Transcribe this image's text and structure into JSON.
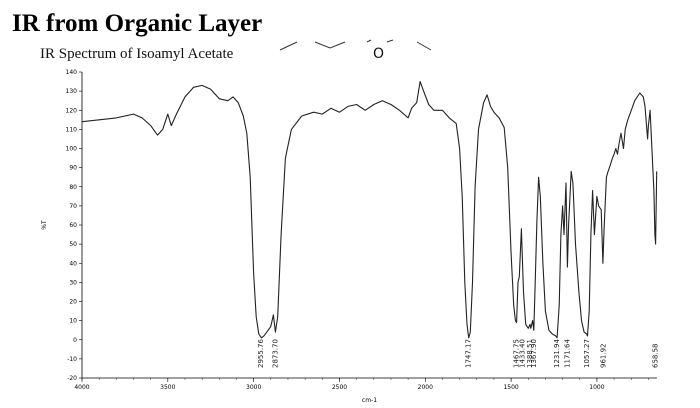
{
  "slide_title": "IR from Organic Layer",
  "structure_atom_label": "O",
  "chart_data": {
    "type": "line",
    "title": "IR Spectrum of Isoamyl Acetate",
    "xlabel": "cm-1",
    "ylabel": "%T",
    "xlim": [
      4000,
      650
    ],
    "ylim": [
      -20,
      140
    ],
    "x_ticks": [
      4000,
      3500,
      3000,
      2500,
      2000,
      1500,
      1000
    ],
    "y_ticks": [
      -20,
      -10,
      0,
      10,
      20,
      30,
      40,
      50,
      60,
      70,
      80,
      90,
      100,
      110,
      120,
      130,
      140
    ],
    "series": [
      {
        "color": "#222222",
        "points": [
          [
            4000,
            114
          ],
          [
            3900,
            115
          ],
          [
            3800,
            116
          ],
          [
            3700,
            118
          ],
          [
            3650,
            116
          ],
          [
            3600,
            112
          ],
          [
            3560,
            107
          ],
          [
            3530,
            110
          ],
          [
            3500,
            118
          ],
          [
            3480,
            112
          ],
          [
            3450,
            118
          ],
          [
            3400,
            127
          ],
          [
            3350,
            132
          ],
          [
            3300,
            133
          ],
          [
            3250,
            131
          ],
          [
            3200,
            126
          ],
          [
            3150,
            125
          ],
          [
            3120,
            127
          ],
          [
            3090,
            124
          ],
          [
            3060,
            117
          ],
          [
            3040,
            108
          ],
          [
            3020,
            85
          ],
          [
            3000,
            35
          ],
          [
            2985,
            12
          ],
          [
            2970,
            3
          ],
          [
            2955,
            1
          ],
          [
            2940,
            2
          ],
          [
            2915,
            5
          ],
          [
            2900,
            7
          ],
          [
            2885,
            13
          ],
          [
            2873,
            4
          ],
          [
            2860,
            12
          ],
          [
            2840,
            55
          ],
          [
            2815,
            95
          ],
          [
            2780,
            110
          ],
          [
            2720,
            117
          ],
          [
            2650,
            119
          ],
          [
            2600,
            118
          ],
          [
            2550,
            121
          ],
          [
            2500,
            119
          ],
          [
            2450,
            122
          ],
          [
            2400,
            123
          ],
          [
            2350,
            120
          ],
          [
            2300,
            123
          ],
          [
            2250,
            125
          ],
          [
            2200,
            123
          ],
          [
            2150,
            120
          ],
          [
            2100,
            116
          ],
          [
            2080,
            121
          ],
          [
            2050,
            124
          ],
          [
            2030,
            135
          ],
          [
            2010,
            130
          ],
          [
            1980,
            123
          ],
          [
            1950,
            120
          ],
          [
            1900,
            120
          ],
          [
            1860,
            116
          ],
          [
            1820,
            113
          ],
          [
            1800,
            100
          ],
          [
            1785,
            75
          ],
          [
            1770,
            30
          ],
          [
            1757,
            8
          ],
          [
            1747,
            1
          ],
          [
            1738,
            4
          ],
          [
            1725,
            30
          ],
          [
            1710,
            80
          ],
          [
            1690,
            110
          ],
          [
            1660,
            124
          ],
          [
            1640,
            128
          ],
          [
            1620,
            122
          ],
          [
            1600,
            119
          ],
          [
            1570,
            116
          ],
          [
            1540,
            111
          ],
          [
            1520,
            90
          ],
          [
            1500,
            45
          ],
          [
            1485,
            18
          ],
          [
            1475,
            10
          ],
          [
            1468,
            9
          ],
          [
            1460,
            30
          ],
          [
            1452,
            33
          ],
          [
            1440,
            58
          ],
          [
            1434,
            42
          ],
          [
            1428,
            25
          ],
          [
            1415,
            8
          ],
          [
            1400,
            6
          ],
          [
            1390,
            8
          ],
          [
            1385,
            6
          ],
          [
            1375,
            10
          ],
          [
            1368,
            5
          ],
          [
            1360,
            28
          ],
          [
            1350,
            62
          ],
          [
            1340,
            85
          ],
          [
            1330,
            75
          ],
          [
            1315,
            40
          ],
          [
            1300,
            15
          ],
          [
            1280,
            5
          ],
          [
            1260,
            3
          ],
          [
            1240,
            2
          ],
          [
            1232,
            1
          ],
          [
            1220,
            18
          ],
          [
            1210,
            55
          ],
          [
            1200,
            70
          ],
          [
            1192,
            55
          ],
          [
            1180,
            82
          ],
          [
            1172,
            38
          ],
          [
            1165,
            60
          ],
          [
            1150,
            88
          ],
          [
            1140,
            82
          ],
          [
            1125,
            50
          ],
          [
            1105,
            25
          ],
          [
            1090,
            10
          ],
          [
            1075,
            4
          ],
          [
            1060,
            3
          ],
          [
            1055,
            2
          ],
          [
            1045,
            15
          ],
          [
            1035,
            55
          ],
          [
            1025,
            78
          ],
          [
            1015,
            55
          ],
          [
            1000,
            75
          ],
          [
            990,
            70
          ],
          [
            975,
            68
          ],
          [
            965,
            40
          ],
          [
            958,
            58
          ],
          [
            945,
            85
          ],
          [
            935,
            88
          ],
          [
            920,
            92
          ],
          [
            910,
            95
          ],
          [
            900,
            97
          ],
          [
            890,
            100
          ],
          [
            880,
            97
          ],
          [
            870,
            103
          ],
          [
            860,
            108
          ],
          [
            845,
            100
          ],
          [
            835,
            110
          ],
          [
            820,
            115
          ],
          [
            800,
            120
          ],
          [
            780,
            125
          ],
          [
            750,
            129
          ],
          [
            730,
            127
          ],
          [
            720,
            122
          ],
          [
            705,
            105
          ],
          [
            700,
            112
          ],
          [
            690,
            120
          ],
          [
            680,
            100
          ],
          [
            668,
            78
          ],
          [
            662,
            55
          ],
          [
            658,
            50
          ],
          [
            652,
            88
          ]
        ]
      }
    ],
    "peak_labels": [
      {
        "x": 2955.76,
        "text": "2955.76"
      },
      {
        "x": 2873.7,
        "text": "2873.70"
      },
      {
        "x": 1747.17,
        "text": "1747.17"
      },
      {
        "x": 1467.75,
        "text": "1467.75"
      },
      {
        "x": 1433.4,
        "text": "1433.40"
      },
      {
        "x": 1388.51,
        "text": "1388.51"
      },
      {
        "x": 1367.9,
        "text": "1367.90"
      },
      {
        "x": 1231.94,
        "text": "1231.94"
      },
      {
        "x": 1171.64,
        "text": "1171.64"
      },
      {
        "x": 1057.27,
        "text": "1057.27"
      },
      {
        "x": 961.92,
        "text": "961.92"
      },
      {
        "x": 658.58,
        "text": "658.58"
      }
    ]
  }
}
